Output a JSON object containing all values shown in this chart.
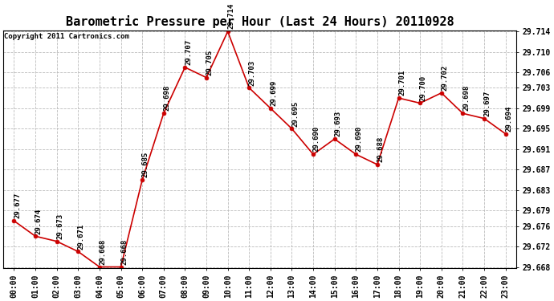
{
  "title": "Barometric Pressure per Hour (Last 24 Hours) 20110928",
  "copyright": "Copyright 2011 Cartronics.com",
  "hours": [
    "00:00",
    "01:00",
    "02:00",
    "03:00",
    "04:00",
    "05:00",
    "06:00",
    "07:00",
    "08:00",
    "09:00",
    "10:00",
    "11:00",
    "12:00",
    "13:00",
    "14:00",
    "15:00",
    "16:00",
    "17:00",
    "18:00",
    "19:00",
    "20:00",
    "21:00",
    "22:00",
    "23:00"
  ],
  "values": [
    29.677,
    29.674,
    29.673,
    29.671,
    29.668,
    29.668,
    29.685,
    29.698,
    29.707,
    29.705,
    29.714,
    29.703,
    29.699,
    29.695,
    29.69,
    29.693,
    29.69,
    29.688,
    29.701,
    29.7,
    29.702,
    29.698,
    29.697,
    29.694
  ],
  "ylim_min": 29.668,
  "ylim_max": 29.714,
  "yticks": [
    29.668,
    29.672,
    29.676,
    29.679,
    29.683,
    29.687,
    29.691,
    29.695,
    29.699,
    29.703,
    29.706,
    29.71,
    29.714
  ],
  "ytick_labels": [
    "29.668",
    "29.672",
    "29.676",
    "29.679",
    "29.683",
    "29.687",
    "29.691",
    "29.695",
    "29.699",
    "29.703",
    "29.706",
    "29.710",
    "29.714"
  ],
  "line_color": "#cc0000",
  "marker_color": "#cc0000",
  "bg_color": "#ffffff",
  "grid_color": "#bbbbbb",
  "title_fontsize": 11,
  "label_fontsize": 7,
  "annotation_fontsize": 6.5,
  "copyright_fontsize": 6.5
}
